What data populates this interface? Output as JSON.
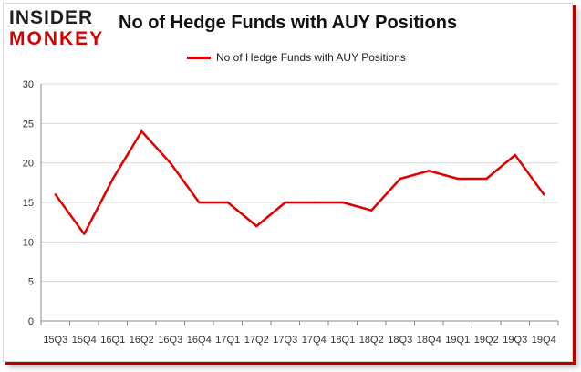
{
  "brand": {
    "line1": "INSIDER",
    "line2": "MONKEY"
  },
  "chart_data": {
    "type": "line",
    "title": "No of Hedge Funds with AUY Positions",
    "x": [
      "15Q3",
      "15Q4",
      "16Q1",
      "16Q2",
      "16Q3",
      "16Q4",
      "17Q1",
      "17Q2",
      "17Q3",
      "17Q4",
      "18Q1",
      "18Q2",
      "18Q3",
      "18Q4",
      "19Q1",
      "19Q2",
      "19Q3",
      "19Q4"
    ],
    "series": [
      {
        "name": "No of Hedge Funds with AUY Positions",
        "values": [
          16,
          11,
          18,
          24,
          20,
          15,
          15,
          12,
          15,
          15,
          15,
          14,
          18,
          19,
          18,
          18,
          21,
          16
        ]
      }
    ],
    "yticks": [
      "0",
      "5",
      "10",
      "15",
      "20",
      "25",
      "30"
    ],
    "ylim": [
      0,
      30
    ],
    "grid": true,
    "legend": "top-center",
    "colors": {
      "series": "#e00000",
      "grid": "#d9d9d9",
      "axis": "#888888"
    }
  }
}
